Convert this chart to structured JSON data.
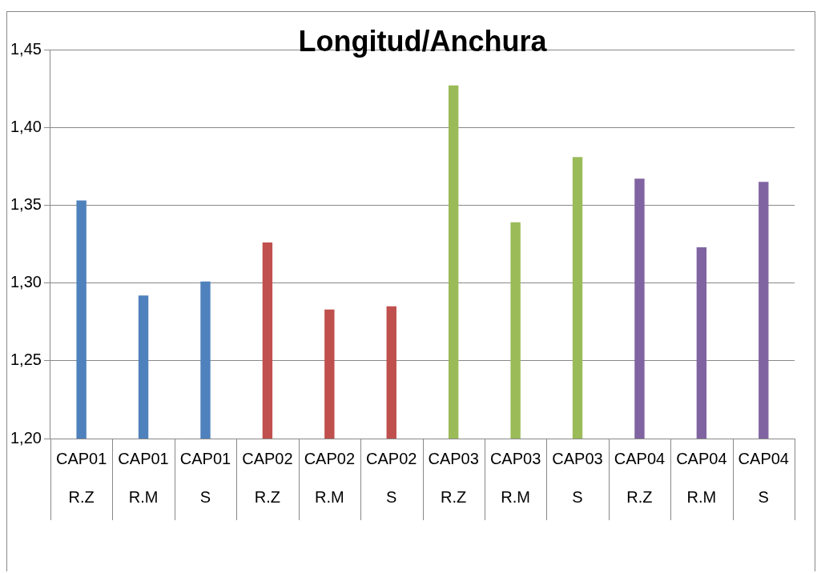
{
  "chart_data": {
    "type": "bar",
    "title": "Longitud/Anchura",
    "categories": [
      "CAP01 R.Z",
      "CAP01 R.M",
      "CAP01 S",
      "CAP02 R.Z",
      "CAP02 R.M",
      "CAP02 S",
      "CAP03 R.Z",
      "CAP03 R.M",
      "CAP03 S",
      "CAP04 R.Z",
      "CAP04 R.M",
      "CAP04 S"
    ],
    "values": [
      1.353,
      1.292,
      1.301,
      1.326,
      1.283,
      1.285,
      1.427,
      1.339,
      1.381,
      1.367,
      1.323,
      1.365
    ],
    "colors": [
      "#4f81bd",
      "#4f81bd",
      "#4f81bd",
      "#c0504d",
      "#c0504d",
      "#c0504d",
      "#9bbb59",
      "#9bbb59",
      "#9bbb59",
      "#8064a2",
      "#8064a2",
      "#8064a2"
    ],
    "ylim": [
      1.2,
      1.45
    ],
    "yticks": [
      {
        "value": 1.2,
        "label": "1,20"
      },
      {
        "value": 1.25,
        "label": "1,25"
      },
      {
        "value": 1.3,
        "label": "1,30"
      },
      {
        "value": 1.35,
        "label": "1,35"
      },
      {
        "value": 1.4,
        "label": "1,40"
      },
      {
        "value": 1.45,
        "label": "1,45"
      }
    ],
    "grid": "y",
    "legend": false
  }
}
